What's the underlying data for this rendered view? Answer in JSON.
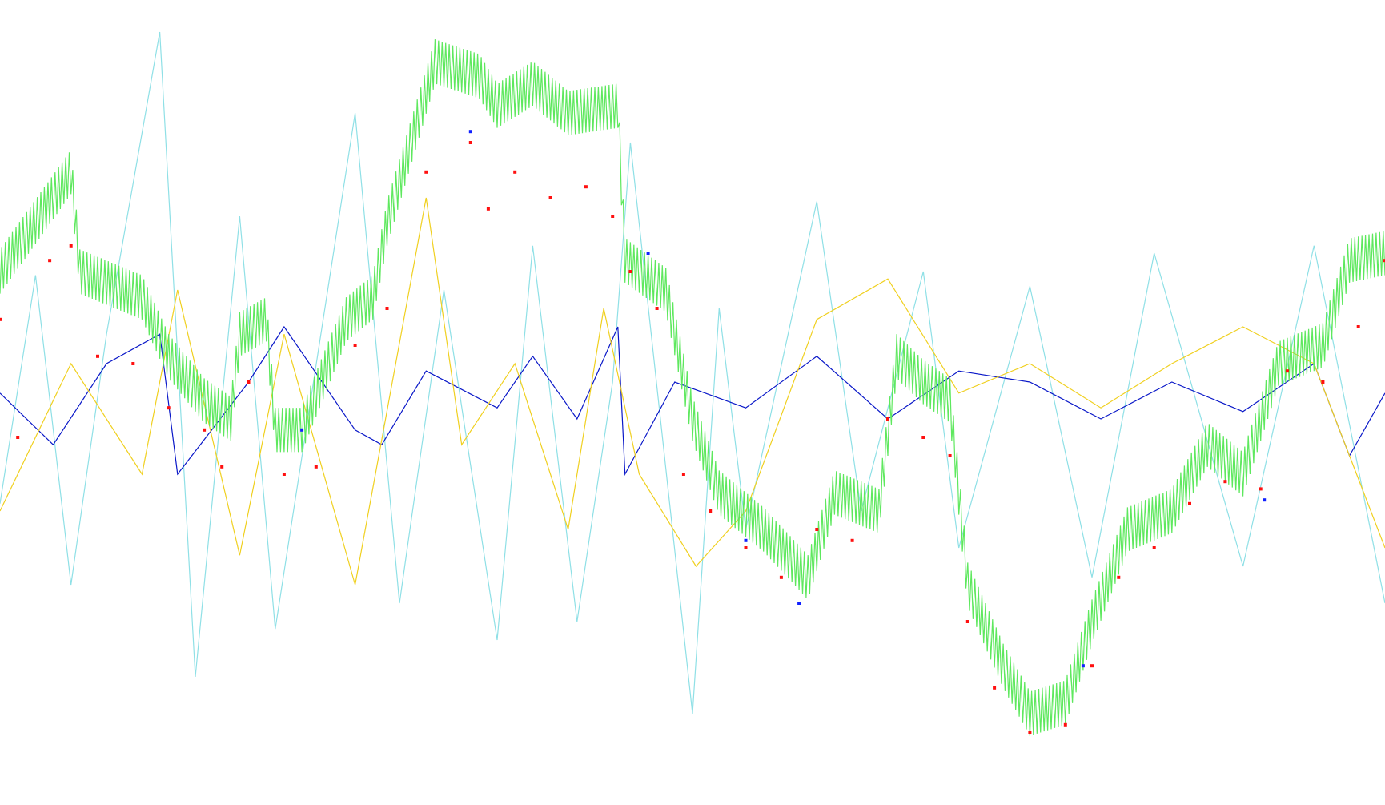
{
  "chart_data": {
    "type": "line",
    "title": "",
    "xlabel": "",
    "ylabel": "",
    "xlim": [
      0,
      780
    ],
    "ylim": [
      -1.0,
      1.0
    ],
    "grid": false,
    "legend": "none",
    "colors": {
      "background": "#ffffff",
      "trend_band": "#5ee85e",
      "signal_a": "#0a18c8",
      "signal_b": "#f0d020",
      "signal_c": "#8fe0e6",
      "marker_primary": "#ff1010",
      "marker_secondary": "#1020ff"
    },
    "series": [
      {
        "style": "line",
        "color": "#8fe0e6",
        "points": [
          [
            0,
            -0.28
          ],
          [
            20,
            0.34
          ],
          [
            40,
            -0.5
          ],
          [
            60,
            0.18
          ],
          [
            90,
            1.0
          ],
          [
            110,
            -0.75
          ],
          [
            135,
            0.5
          ],
          [
            155,
            -0.62
          ],
          [
            200,
            0.78
          ],
          [
            225,
            -0.55
          ],
          [
            250,
            0.3
          ],
          [
            280,
            -0.65
          ],
          [
            300,
            0.42
          ],
          [
            325,
            -0.6
          ],
          [
            345,
            0.05
          ],
          [
            355,
            0.7
          ],
          [
            390,
            -0.85
          ],
          [
            405,
            0.25
          ],
          [
            420,
            -0.35
          ],
          [
            460,
            0.54
          ],
          [
            485,
            -0.3
          ],
          [
            520,
            0.35
          ],
          [
            540,
            -0.4
          ],
          [
            580,
            0.31
          ],
          [
            615,
            -0.48
          ],
          [
            650,
            0.4
          ],
          [
            700,
            -0.45
          ],
          [
            740,
            0.42
          ],
          [
            780,
            -0.55
          ]
        ]
      },
      {
        "style": "line",
        "color": "#0a18c8",
        "points": [
          [
            0,
            0.02
          ],
          [
            30,
            -0.12
          ],
          [
            60,
            0.1
          ],
          [
            90,
            0.18
          ],
          [
            100,
            -0.2
          ],
          [
            140,
            0.05
          ],
          [
            160,
            0.2
          ],
          [
            200,
            -0.08
          ],
          [
            215,
            -0.12
          ],
          [
            240,
            0.08
          ],
          [
            280,
            -0.02
          ],
          [
            300,
            0.12
          ],
          [
            325,
            -0.05
          ],
          [
            348,
            0.2
          ],
          [
            352,
            -0.2
          ],
          [
            380,
            0.05
          ],
          [
            420,
            -0.02
          ],
          [
            460,
            0.12
          ],
          [
            500,
            -0.05
          ],
          [
            540,
            0.08
          ],
          [
            580,
            0.05
          ],
          [
            620,
            -0.05
          ],
          [
            660,
            0.05
          ],
          [
            700,
            -0.03
          ],
          [
            740,
            0.1
          ],
          [
            760,
            -0.15
          ],
          [
            780,
            0.02
          ]
        ]
      },
      {
        "style": "line",
        "color": "#f0d020",
        "points": [
          [
            0,
            -0.3
          ],
          [
            40,
            0.1
          ],
          [
            80,
            -0.2
          ],
          [
            100,
            0.3
          ],
          [
            135,
            -0.42
          ],
          [
            160,
            0.18
          ],
          [
            200,
            -0.5
          ],
          [
            240,
            0.55
          ],
          [
            260,
            -0.12
          ],
          [
            290,
            0.1
          ],
          [
            320,
            -0.35
          ],
          [
            340,
            0.25
          ],
          [
            360,
            -0.2
          ],
          [
            392,
            -0.45
          ],
          [
            420,
            -0.3
          ],
          [
            460,
            0.22
          ],
          [
            500,
            0.33
          ],
          [
            540,
            0.02
          ],
          [
            580,
            0.1
          ],
          [
            620,
            -0.02
          ],
          [
            660,
            0.1
          ],
          [
            700,
            0.2
          ],
          [
            740,
            0.1
          ],
          [
            780,
            -0.4
          ]
        ]
      },
      {
        "style": "band",
        "color": "#5ee85e",
        "points": [
          [
            0,
            0.35
          ],
          [
            40,
            0.62
          ],
          [
            45,
            0.35
          ],
          [
            80,
            0.28
          ],
          [
            95,
            0.12
          ],
          [
            115,
            0.0
          ],
          [
            130,
            -0.05
          ],
          [
            135,
            0.18
          ],
          [
            150,
            0.22
          ],
          [
            155,
            -0.08
          ],
          [
            170,
            -0.08
          ],
          [
            195,
            0.22
          ],
          [
            210,
            0.28
          ],
          [
            218,
            0.48
          ],
          [
            245,
            0.92
          ],
          [
            270,
            0.88
          ],
          [
            280,
            0.8
          ],
          [
            300,
            0.86
          ],
          [
            320,
            0.78
          ],
          [
            348,
            0.8
          ],
          [
            352,
            0.38
          ],
          [
            375,
            0.3
          ],
          [
            390,
            -0.05
          ],
          [
            405,
            -0.25
          ],
          [
            430,
            -0.35
          ],
          [
            455,
            -0.48
          ],
          [
            470,
            -0.25
          ],
          [
            495,
            -0.3
          ],
          [
            505,
            0.12
          ],
          [
            520,
            0.05
          ],
          [
            535,
            0.0
          ],
          [
            545,
            -0.5
          ],
          [
            565,
            -0.72
          ],
          [
            580,
            -0.85
          ],
          [
            600,
            -0.82
          ],
          [
            615,
            -0.6
          ],
          [
            635,
            -0.35
          ],
          [
            660,
            -0.3
          ],
          [
            680,
            -0.12
          ],
          [
            700,
            -0.2
          ],
          [
            720,
            0.1
          ],
          [
            745,
            0.15
          ],
          [
            760,
            0.38
          ],
          [
            780,
            0.4
          ]
        ]
      },
      {
        "style": "markers",
        "color": "#ff1010",
        "points": [
          [
            0,
            0.22
          ],
          [
            10,
            -0.1
          ],
          [
            28,
            0.38
          ],
          [
            40,
            0.42
          ],
          [
            55,
            0.12
          ],
          [
            75,
            0.1
          ],
          [
            95,
            -0.02
          ],
          [
            115,
            -0.08
          ],
          [
            125,
            -0.18
          ],
          [
            140,
            0.05
          ],
          [
            160,
            -0.2
          ],
          [
            178,
            -0.18
          ],
          [
            200,
            0.15
          ],
          [
            218,
            0.25
          ],
          [
            240,
            0.62
          ],
          [
            265,
            0.7
          ],
          [
            275,
            0.52
          ],
          [
            290,
            0.62
          ],
          [
            310,
            0.55
          ],
          [
            330,
            0.58
          ],
          [
            345,
            0.5
          ],
          [
            355,
            0.35
          ],
          [
            370,
            0.25
          ],
          [
            385,
            -0.2
          ],
          [
            400,
            -0.3
          ],
          [
            420,
            -0.4
          ],
          [
            440,
            -0.48
          ],
          [
            460,
            -0.35
          ],
          [
            480,
            -0.38
          ],
          [
            500,
            -0.05
          ],
          [
            520,
            -0.1
          ],
          [
            535,
            -0.15
          ],
          [
            545,
            -0.6
          ],
          [
            560,
            -0.78
          ],
          [
            580,
            -0.9
          ],
          [
            600,
            -0.88
          ],
          [
            615,
            -0.72
          ],
          [
            630,
            -0.48
          ],
          [
            650,
            -0.4
          ],
          [
            670,
            -0.28
          ],
          [
            690,
            -0.22
          ],
          [
            710,
            -0.24
          ],
          [
            725,
            0.08
          ],
          [
            745,
            0.05
          ],
          [
            765,
            0.2
          ],
          [
            780,
            0.38
          ]
        ]
      },
      {
        "style": "markers",
        "color": "#1020ff",
        "points": [
          [
            170,
            -0.08
          ],
          [
            265,
            0.73
          ],
          [
            365,
            0.4
          ],
          [
            420,
            -0.38
          ],
          [
            450,
            -0.55
          ],
          [
            610,
            -0.72
          ],
          [
            712,
            -0.27
          ]
        ]
      }
    ]
  }
}
